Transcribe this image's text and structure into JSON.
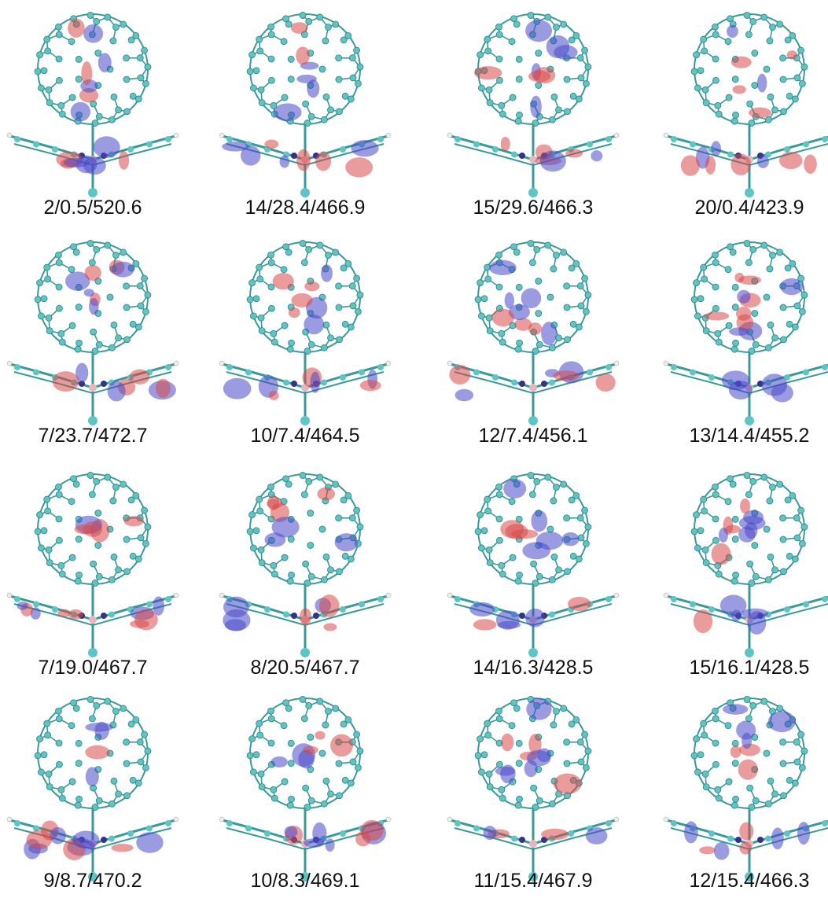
{
  "grid": [
    [
      "2/0.5/520.6",
      "14/28.4/466.9",
      "15/29.6/466.3",
      "20/0.4/423.9"
    ],
    [
      "7/23.7/472.7",
      "10/7.4/464.5",
      "12/7.4/456.1",
      "13/14.4/455.2"
    ],
    [
      "7/19.0/467.7",
      "8/20.5/467.7",
      "14/16.3/428.5",
      "15/16.1/428.5"
    ],
    [
      "9/8.7/470.2",
      "10/8.3/469.1",
      "11/15.4/467.9",
      "12/15.4/466.3"
    ]
  ]
}
